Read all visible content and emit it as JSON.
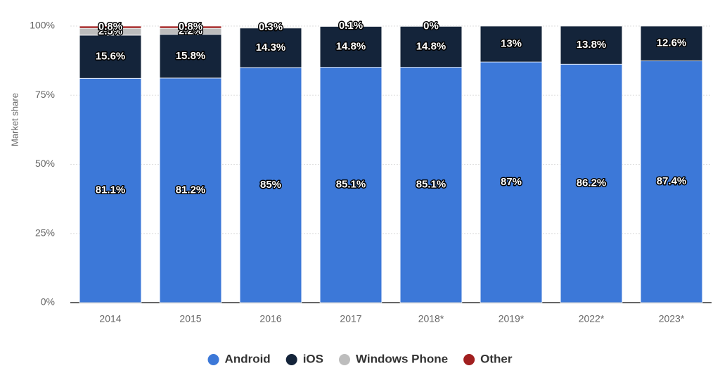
{
  "chart_data": {
    "type": "stacked_bar",
    "y_axis_label": "Market share",
    "categories": [
      "2014",
      "2015",
      "2016",
      "2017",
      "2018*",
      "2019*",
      "2022*",
      "2023*"
    ],
    "series": [
      {
        "name": "Android",
        "color": "#3c78d8",
        "values": [
          81.1,
          81.2,
          85,
          85.1,
          85.1,
          87,
          86.2,
          87.4
        ],
        "value_labels": [
          "81.1%",
          "81.2%",
          "85%",
          "85.1%",
          "85.1%",
          "87%",
          "86.2%",
          "87.4%"
        ]
      },
      {
        "name": "iOS",
        "color": "#14243a",
        "values": [
          15.6,
          15.8,
          14.3,
          14.8,
          14.8,
          13,
          13.8,
          12.6
        ],
        "value_labels": [
          "15.6%",
          "15.8%",
          "14.3%",
          "14.8%",
          "14.8%",
          "13%",
          "13.8%",
          "12.6%"
        ]
      },
      {
        "name": "Windows Phone",
        "color": "#bdbdbd",
        "values": [
          2.5,
          2.2,
          0.3,
          0.1,
          0,
          null,
          null,
          null
        ],
        "value_labels": [
          "2.5%",
          "2.2%",
          "0.3%",
          "0.1%",
          "0%",
          null,
          null,
          null
        ]
      },
      {
        "name": "Other",
        "color": "#a11f1f",
        "values": [
          0.8,
          0.8,
          null,
          null,
          null,
          null,
          null,
          null
        ],
        "value_labels": [
          "0.8%",
          "0.8%",
          null,
          null,
          null,
          null,
          null,
          null
        ]
      }
    ],
    "ylim": [
      0,
      100
    ],
    "yticks": [
      {
        "value": 0,
        "label": "0%"
      },
      {
        "value": 25,
        "label": "25%"
      },
      {
        "value": 50,
        "label": "50%"
      },
      {
        "value": 75,
        "label": "75%"
      },
      {
        "value": 100,
        "label": "100%"
      }
    ],
    "grid": true,
    "legend_position": "bottom"
  }
}
